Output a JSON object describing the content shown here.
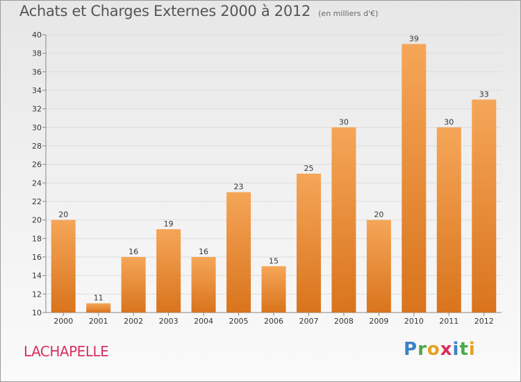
{
  "title": "Achats et Charges Externes 2000 à 2012",
  "subtitle": "(en milliers d'€)",
  "commune": "LACHAPELLE",
  "logo": "Proxiti",
  "colors": {
    "bar_top": "#f5a658",
    "bar_bottom": "#d9741d",
    "grid": "#dcdcdc",
    "commune": "#d9305f"
  },
  "chart_data": {
    "type": "bar",
    "title": "Achats et Charges Externes 2000 à 2012",
    "subtitle": "(en milliers d'€)",
    "categories": [
      "2000",
      "2001",
      "2002",
      "2003",
      "2004",
      "2005",
      "2006",
      "2007",
      "2008",
      "2009",
      "2010",
      "2011",
      "2012"
    ],
    "values": [
      20,
      11,
      16,
      19,
      16,
      23,
      15,
      25,
      30,
      20,
      39,
      30,
      33
    ],
    "ylim": [
      10,
      40
    ],
    "yticks": [
      10,
      12,
      14,
      16,
      18,
      20,
      22,
      24,
      26,
      28,
      30,
      32,
      34,
      36,
      38,
      40
    ],
    "grid": true,
    "data_labels": true
  }
}
